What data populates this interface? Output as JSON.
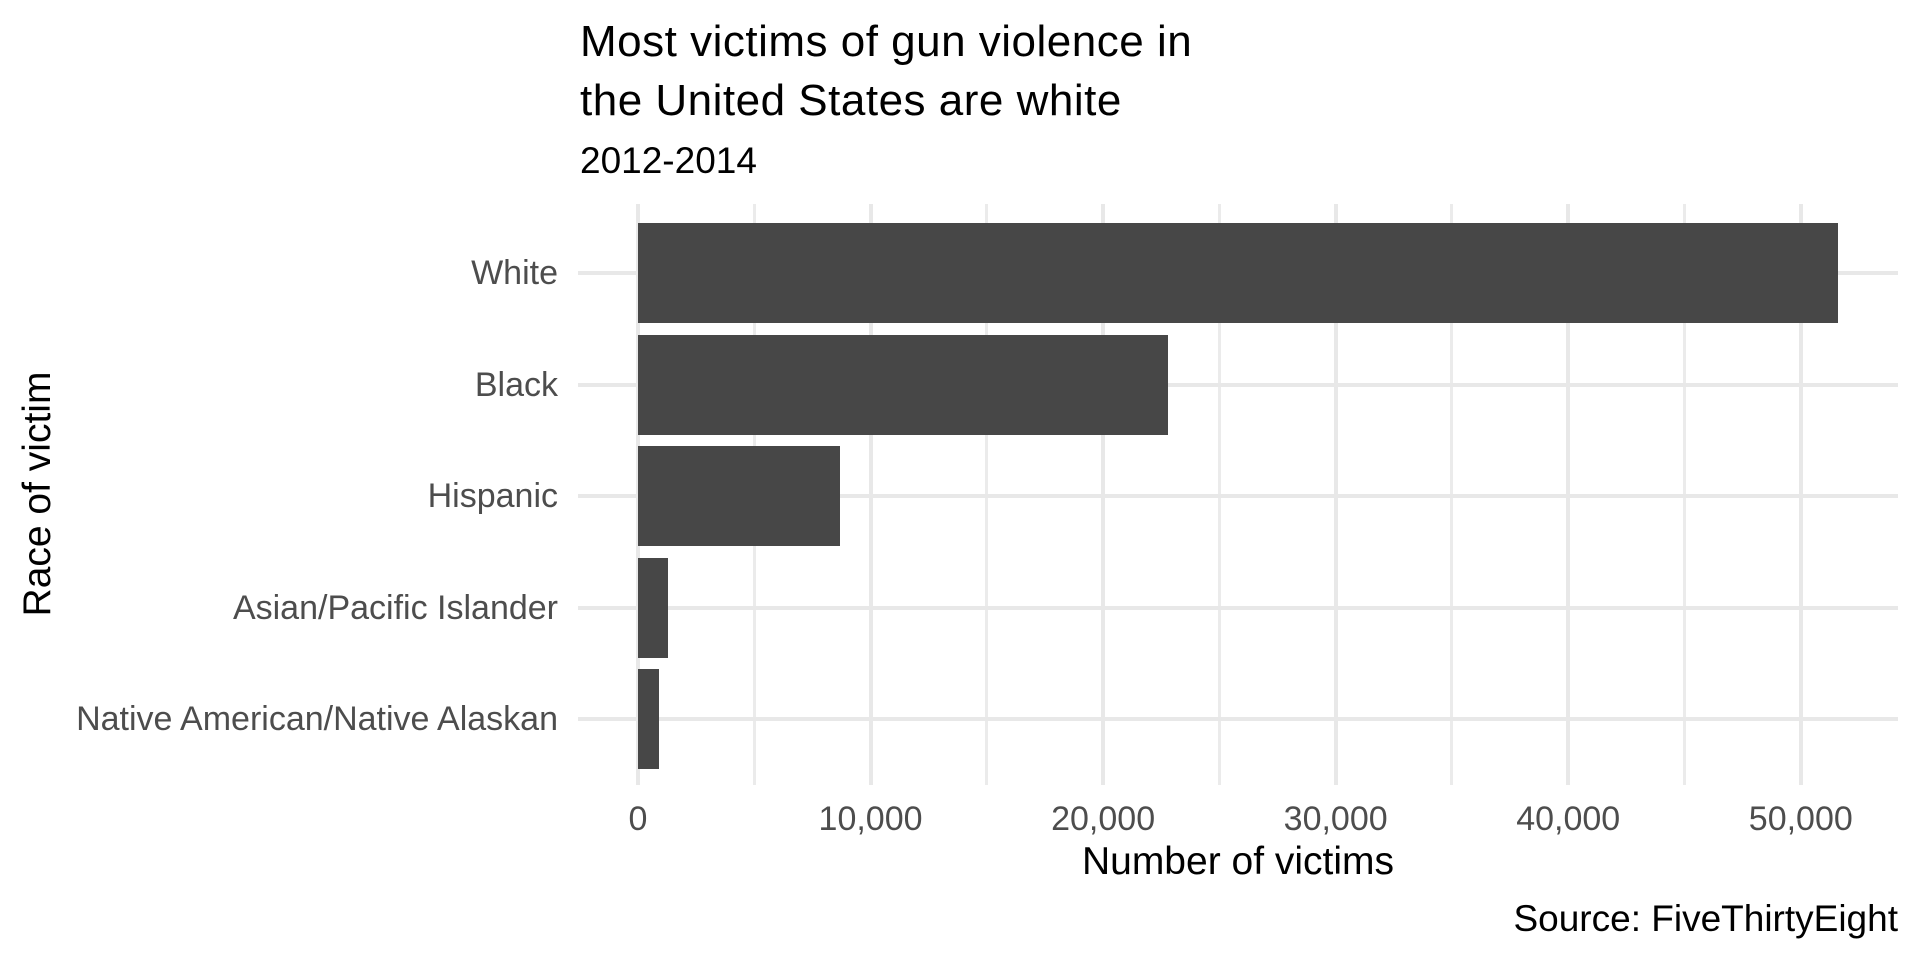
{
  "chart": {
    "title_line1": "Most victims of gun violence in",
    "title_line2": "the United States are white",
    "subtitle": "2012-2014",
    "y_axis_label": "Race of victim",
    "x_axis_label": "Number of victims",
    "caption": "Source: FiveThirtyEight"
  },
  "chart_data": {
    "type": "bar",
    "orientation": "horizontal",
    "title": "Most victims of gun violence in the United States are white",
    "subtitle": "2012-2014",
    "xlabel": "Number of victims",
    "ylabel": "Race of victim",
    "caption": "Source: FiveThirtyEight",
    "categories": [
      "White",
      "Black",
      "Hispanic",
      "Asian/Pacific Islander",
      "Native American/Native Alaskan"
    ],
    "values": [
      51600,
      22800,
      8700,
      1300,
      900
    ],
    "xlim": [
      0,
      51600
    ],
    "x_expansion_mult": 0.05,
    "x_major_ticks": [
      {
        "value": 0,
        "label": "0"
      },
      {
        "value": 10000,
        "label": "10,000"
      },
      {
        "value": 20000,
        "label": "20,000"
      },
      {
        "value": 30000,
        "label": "30,000"
      },
      {
        "value": 40000,
        "label": "40,000"
      },
      {
        "value": 50000,
        "label": "50,000"
      }
    ],
    "x_minor_ticks": [
      5000,
      15000,
      25000,
      35000,
      45000
    ],
    "grid": true,
    "legend": false,
    "colors": {
      "bar": "#474747",
      "grid_major": "#e8e8e8",
      "grid_minor": "#ebebeb",
      "axis_text": "#4d4d4d",
      "text": "#000000",
      "background": "#ffffff"
    }
  }
}
